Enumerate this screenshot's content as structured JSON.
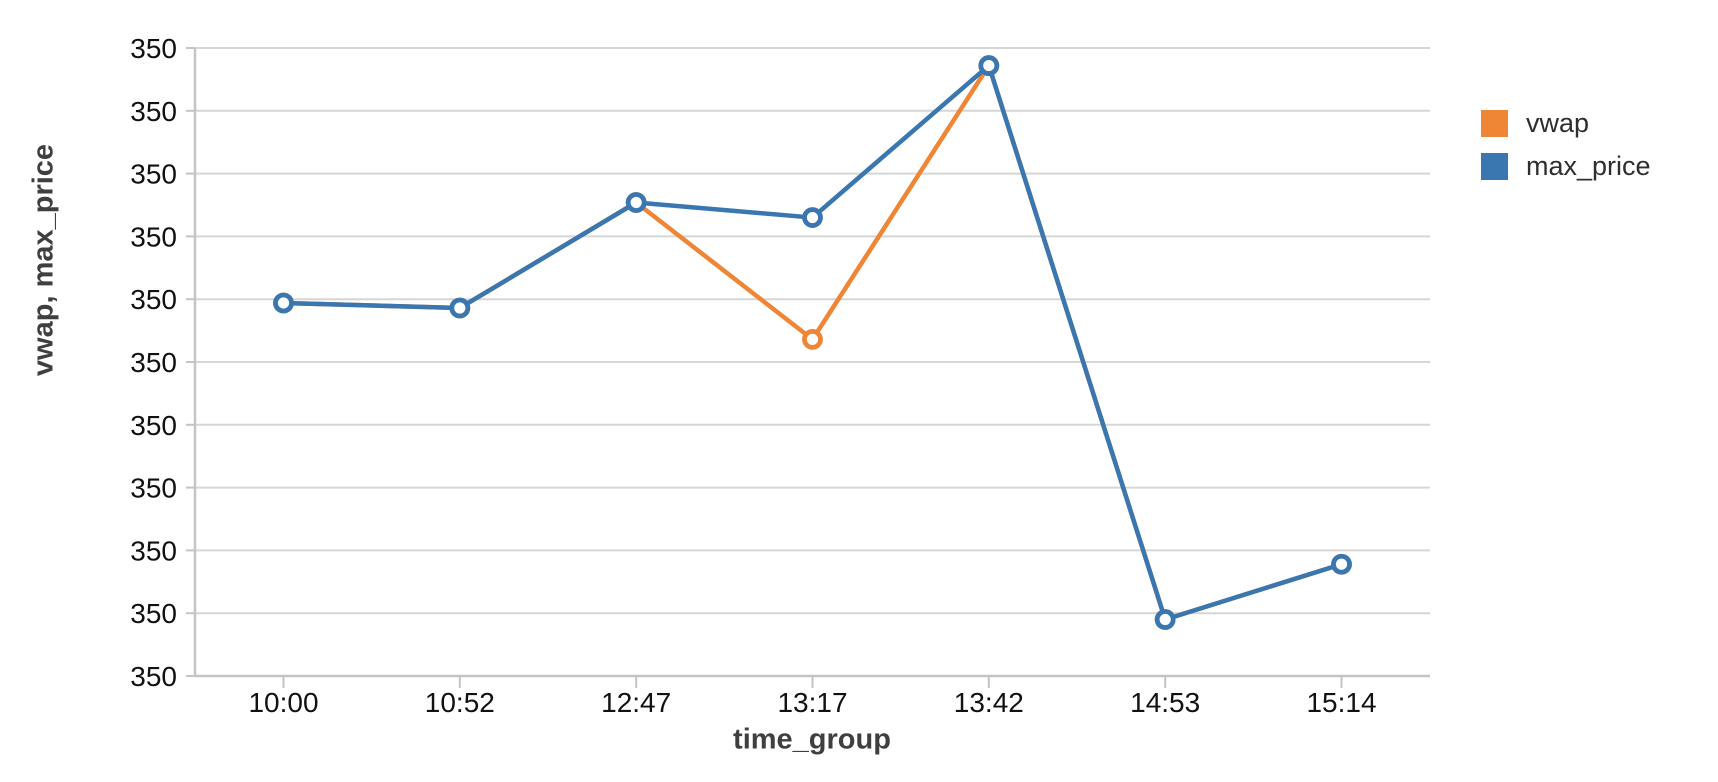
{
  "chart_data": {
    "type": "line",
    "title": "",
    "xlabel": "time_group",
    "ylabel": "vwap, max_price",
    "categories": [
      "10:00",
      "10:52",
      "12:47",
      "13:17",
      "13:42",
      "14:53",
      "15:14"
    ],
    "series": [
      {
        "name": "vwap",
        "color": "#EF8636",
        "marker": "open-circle",
        "values": [
          350.047,
          350.043,
          350.127,
          350.018,
          350.236,
          349.795,
          349.839
        ]
      },
      {
        "name": "max_price",
        "color": "#3A76AF",
        "marker": "open-circle",
        "values": [
          350.047,
          350.043,
          350.127,
          350.115,
          350.236,
          349.795,
          349.839
        ]
      }
    ],
    "ylim": [
      349.75,
      350.25
    ],
    "ytick_step": 0.05,
    "ytick_labels": [
      "350",
      "350",
      "350",
      "350",
      "350",
      "350",
      "350",
      "350",
      "350",
      "350",
      "350"
    ],
    "grid": true,
    "legend_position": "right-top",
    "background": "#ffffff"
  },
  "styles": {
    "grid_color": "#d6d6d6",
    "axis_color": "#c4c4c4",
    "tick_color": "#c4c4c4",
    "tick_label_color": "#111111",
    "title_color": "#3f3f3f",
    "legend_text_color": "#2e2e2e"
  }
}
